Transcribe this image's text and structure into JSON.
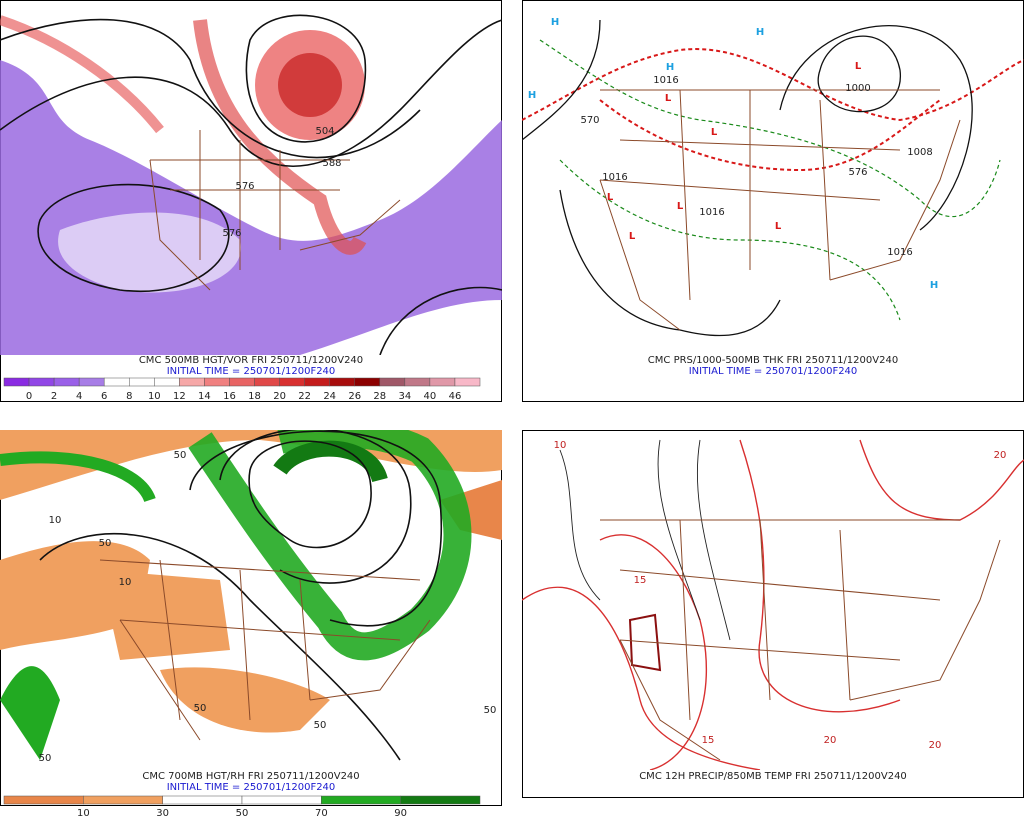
{
  "panels": [
    {
      "caption": "CMC 500MB HGT/VOR FRI 250711/1200V240",
      "initial_time": "INITIAL TIME = 250701/1200F240",
      "contour_labels": [
        "576",
        "588",
        "504",
        "576"
      ],
      "legend": {
        "labels": [
          0,
          2,
          4,
          6,
          8,
          10,
          12,
          14,
          16,
          18,
          20,
          22,
          24,
          26,
          28,
          34,
          40,
          46
        ],
        "colors": [
          "#8a2be2",
          "#9147e6",
          "#9a60e8",
          "#a77de6",
          "#ffffff",
          "#ffffff",
          "#ffffff",
          "#f6a8a8",
          "#f08080",
          "#e86464",
          "#e04848",
          "#d83030",
          "#c41c1c",
          "#a80c0c",
          "#8c0000",
          "#a05868",
          "#c07888",
          "#e098a8",
          "#f8b8c8"
        ]
      }
    },
    {
      "caption": "CMC PRS/1000-500MB THK FRI 250711/1200V240",
      "initial_time": "INITIAL TIME = 250701/1200F240",
      "centers": [
        {
          "label": "H",
          "color": "#1ca0e0"
        },
        {
          "label": "H",
          "color": "#1ca0e0"
        },
        {
          "label": "H",
          "color": "#1ca0e0"
        },
        {
          "label": "H",
          "color": "#1ca0e0"
        },
        {
          "label": "H",
          "color": "#1ca0e0"
        },
        {
          "label": "L",
          "color": "#d81818"
        },
        {
          "label": "L",
          "color": "#d81818"
        },
        {
          "label": "L",
          "color": "#d81818"
        },
        {
          "label": "L",
          "color": "#d81818"
        },
        {
          "label": "L",
          "color": "#d81818"
        },
        {
          "label": "L",
          "color": "#d81818"
        },
        {
          "label": "L",
          "color": "#d81818"
        }
      ],
      "contour_labels": [
        "1016",
        "1000",
        "1008",
        "1016",
        "1016",
        "1016",
        "570",
        "576"
      ]
    },
    {
      "caption": "CMC 700MB HGT/RH FRI 250711/1200V240",
      "initial_time": "INITIAL TIME = 250701/1200F240",
      "contour_labels": [
        "50",
        "10",
        "50",
        "10",
        "50",
        "50",
        "50",
        "50"
      ],
      "legend": {
        "labels": [
          10,
          30,
          50,
          70,
          90
        ],
        "colors": [
          "#e8864a",
          "#f0a060",
          "#ffffff",
          "#ffffff",
          "#22aa22",
          "#137a13"
        ]
      }
    },
    {
      "caption": "CMC 12H PRECIP/850MB TEMP FRI 250711/1200V240",
      "contour_labels": [
        "10",
        "15",
        "20",
        "20",
        "20",
        "15"
      ]
    }
  ]
}
